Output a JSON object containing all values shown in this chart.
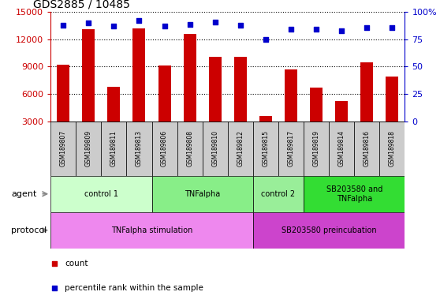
{
  "title": "GDS2885 / 10485",
  "samples": [
    "GSM189807",
    "GSM189809",
    "GSM189811",
    "GSM189813",
    "GSM189806",
    "GSM189808",
    "GSM189810",
    "GSM189812",
    "GSM189815",
    "GSM189817",
    "GSM189819",
    "GSM189814",
    "GSM189816",
    "GSM189818"
  ],
  "counts": [
    9200,
    13100,
    6800,
    13200,
    9100,
    12600,
    10100,
    10100,
    3600,
    8700,
    6700,
    5200,
    9500,
    7900
  ],
  "percentile_ranks": [
    88,
    90,
    87,
    92,
    87,
    89,
    91,
    88,
    75,
    84,
    84,
    83,
    86,
    86
  ],
  "ylim_left": [
    3000,
    15000
  ],
  "ylim_right": [
    0,
    100
  ],
  "yticks_left": [
    3000,
    6000,
    9000,
    12000,
    15000
  ],
  "yticks_right": [
    0,
    25,
    50,
    75,
    100
  ],
  "bar_color": "#cc0000",
  "dot_color": "#0000cc",
  "agent_groups": [
    {
      "label": "control 1",
      "start": 0,
      "end": 4,
      "color": "#ccffcc"
    },
    {
      "label": "TNFalpha",
      "start": 4,
      "end": 8,
      "color": "#88ee88"
    },
    {
      "label": "control 2",
      "start": 8,
      "end": 10,
      "color": "#99ee99"
    },
    {
      "label": "SB203580 and\nTNFalpha",
      "start": 10,
      "end": 14,
      "color": "#33dd33"
    }
  ],
  "protocol_groups": [
    {
      "label": "TNFalpha stimulation",
      "start": 0,
      "end": 8,
      "color": "#ee88ee"
    },
    {
      "label": "SB203580 preincubation",
      "start": 8,
      "end": 14,
      "color": "#cc44cc"
    }
  ],
  "legend_items": [
    {
      "color": "#cc0000",
      "label": "count"
    },
    {
      "color": "#0000cc",
      "label": "percentile rank within the sample"
    }
  ],
  "sample_cell_color": "#cccccc",
  "left_label_color": "#cc0000",
  "right_label_color": "#0000cc"
}
